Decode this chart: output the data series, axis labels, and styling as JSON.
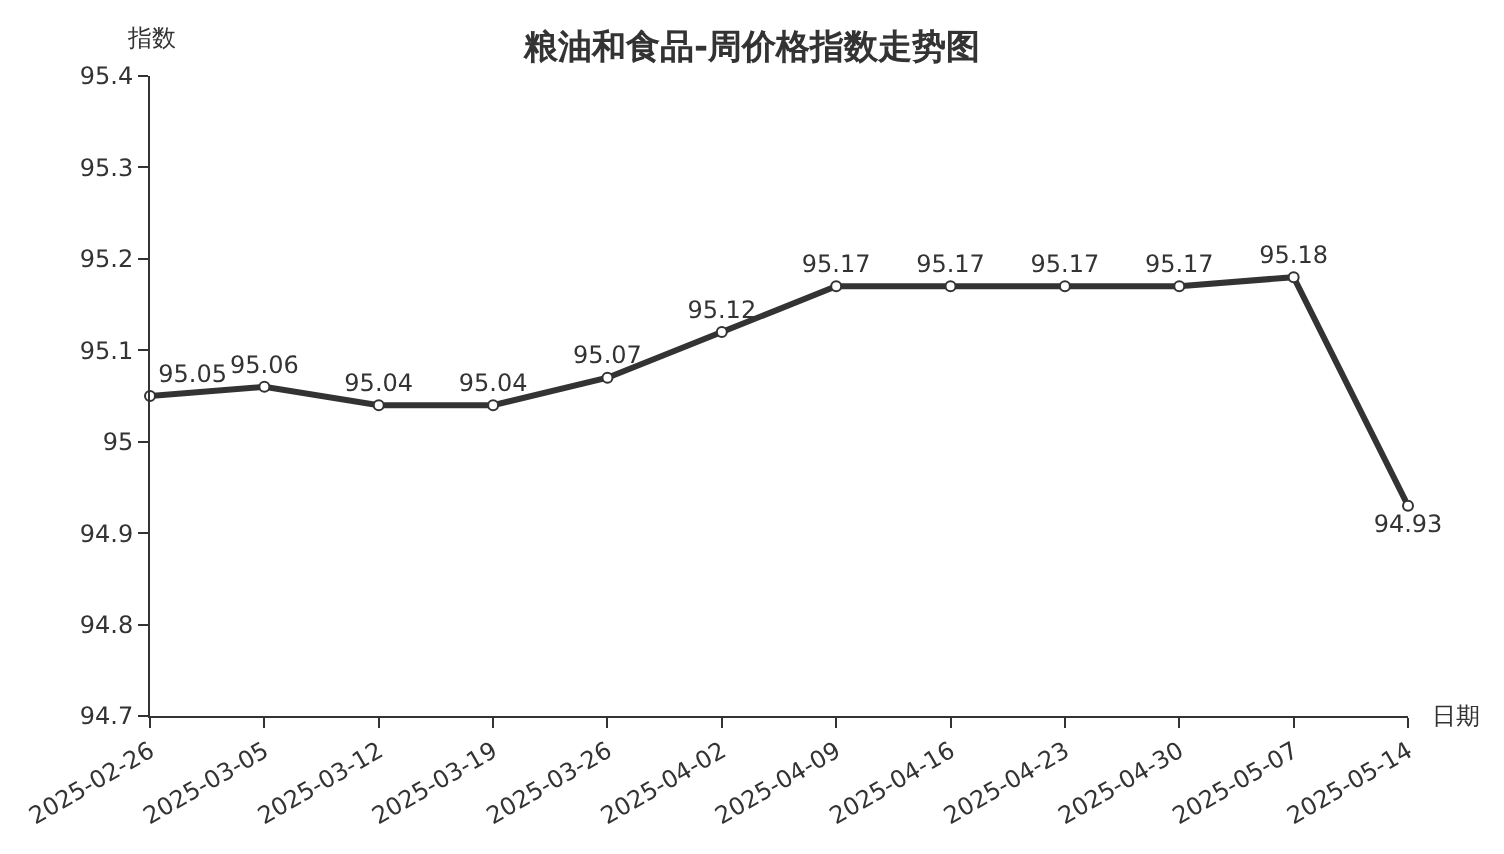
{
  "chart_data": {
    "type": "line",
    "title": "粮油和食品-周价格指数走势图",
    "xlabel": "日期",
    "ylabel": "指数",
    "categories": [
      "2025-02-26",
      "2025-03-05",
      "2025-03-12",
      "2025-03-19",
      "2025-03-26",
      "2025-04-02",
      "2025-04-09",
      "2025-04-16",
      "2025-04-23",
      "2025-04-30",
      "2025-05-07",
      "2025-05-14"
    ],
    "series": [
      {
        "color": "#333333",
        "values": [
          95.05,
          95.06,
          95.04,
          95.04,
          95.07,
          95.12,
          95.17,
          95.17,
          95.17,
          95.17,
          95.18,
          94.93
        ]
      }
    ],
    "ylim": [
      94.7,
      95.4
    ],
    "yticks": [
      94.7,
      94.8,
      94.9,
      95,
      95.1,
      95.2,
      95.3,
      95.4
    ],
    "grid": false,
    "legend": false,
    "marker": "circle",
    "line_style": "solid",
    "data_labels": true
  }
}
